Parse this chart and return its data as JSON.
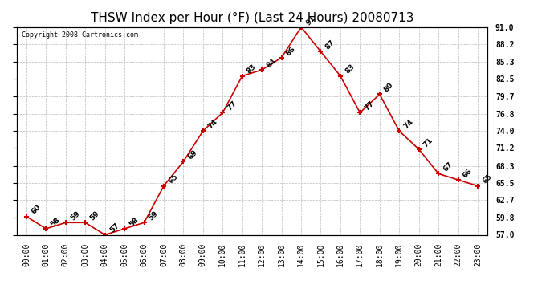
{
  "hours": [
    0,
    1,
    2,
    3,
    4,
    5,
    6,
    7,
    8,
    9,
    10,
    11,
    12,
    13,
    14,
    15,
    16,
    17,
    18,
    19,
    20,
    21,
    22,
    23
  ],
  "values": [
    60,
    58,
    59,
    59,
    57,
    58,
    59,
    65,
    69,
    74,
    77,
    83,
    84,
    86,
    91,
    87,
    83,
    77,
    80,
    74,
    71,
    67,
    66,
    65
  ],
  "title": "THSW Index per Hour (°F) (Last 24 Hours) 20080713",
  "copyright": "Copyright 2008 Cartronics.com",
  "xlabel_ticks": [
    "00:00",
    "01:00",
    "02:00",
    "03:00",
    "04:00",
    "05:00",
    "06:00",
    "07:00",
    "08:00",
    "09:00",
    "10:00",
    "11:00",
    "12:00",
    "13:00",
    "14:00",
    "15:00",
    "16:00",
    "17:00",
    "18:00",
    "19:00",
    "20:00",
    "21:00",
    "22:00",
    "23:00"
  ],
  "yticks": [
    57.0,
    59.8,
    62.7,
    65.5,
    68.3,
    71.2,
    74.0,
    76.8,
    79.7,
    82.5,
    85.3,
    88.2,
    91.0
  ],
  "ymin": 57.0,
  "ymax": 91.0,
  "line_color": "#cc0000",
  "marker_color": "#cc0000",
  "grid_color": "#bbbbbb",
  "bg_color": "#ffffff",
  "title_fontsize": 11,
  "label_fontsize": 7,
  "annot_fontsize": 6.5,
  "copyright_fontsize": 6
}
